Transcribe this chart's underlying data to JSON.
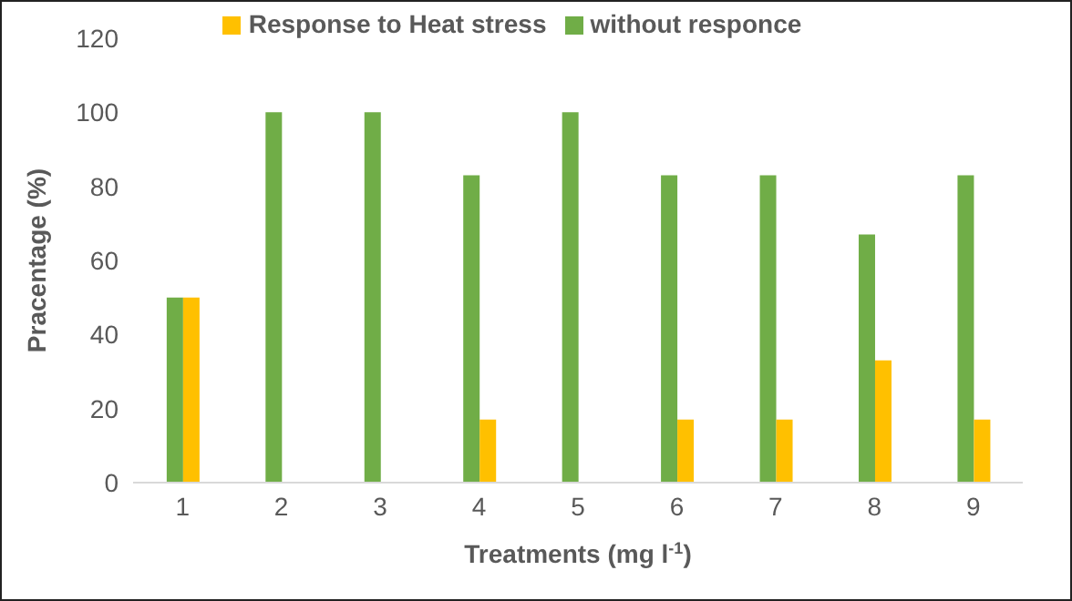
{
  "chart_data": {
    "type": "bar",
    "xlabel": "Treatments (mg l$^{-1}$)",
    "ylabel": "Pracentage (%)",
    "categories": [
      "1",
      "2",
      "3",
      "4",
      "5",
      "6",
      "7",
      "8",
      "9"
    ],
    "series": [
      {
        "name": "without responce",
        "color": "#70ad47",
        "values": [
          50,
          100,
          100,
          83,
          100,
          83,
          83,
          67,
          83
        ]
      },
      {
        "name": "Response to Heat stress",
        "color": "#ffc000",
        "values": [
          50,
          0,
          0,
          17,
          0,
          17,
          17,
          33,
          17
        ]
      }
    ],
    "ylim": [
      0,
      120
    ],
    "yticks": [
      0,
      20,
      40,
      60,
      80,
      100,
      120
    ],
    "grid": false,
    "legend": "top"
  }
}
